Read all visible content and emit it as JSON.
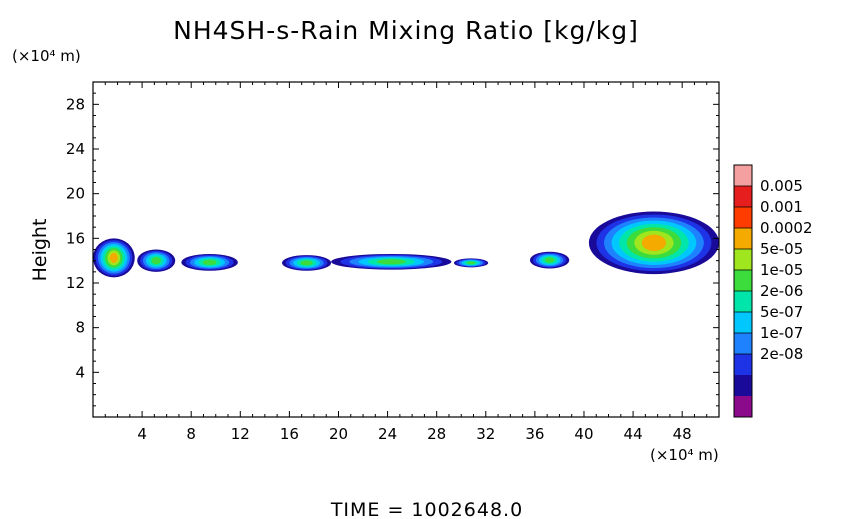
{
  "chart_data": {
    "type": "heatmap",
    "title": "NH4SH-s-Rain Mixing Ratio [kg/kg]",
    "ylabel": "Height",
    "xunit": "(×10⁴ m)",
    "yunit": "(×10⁴ m)",
    "xlim": [
      0,
      51
    ],
    "ylim": [
      0,
      30
    ],
    "x_ticks": [
      4,
      8,
      12,
      16,
      20,
      24,
      28,
      32,
      36,
      40,
      44,
      48
    ],
    "y_ticks": [
      4,
      8,
      12,
      16,
      20,
      24,
      28
    ],
    "colorbar": {
      "levels": [
        "0.005",
        "0.001",
        "0.0002",
        "5e-05",
        "1e-05",
        "2e-06",
        "5e-07",
        "1e-07",
        "2e-08"
      ],
      "colors": [
        "#8B0A8B",
        "#1A0A9A",
        "#1E32E6",
        "#1E82FF",
        "#00C8FF",
        "#00E6AA",
        "#3CDC3C",
        "#A0E61E",
        "#F5AA00",
        "#FF3C00",
        "#E61E1E",
        "#F5A0A0"
      ]
    },
    "bands": [
      {
        "x_start": 0.0,
        "x_end": 3.4,
        "y_bottom": 12.5,
        "y_top": 16.0
      },
      {
        "x_start": 3.6,
        "x_end": 6.7,
        "y_bottom": 13.0,
        "y_top": 15.0
      },
      {
        "x_start": 7.2,
        "x_end": 11.8,
        "y_bottom": 13.1,
        "y_top": 14.6
      },
      {
        "x_start": 15.4,
        "x_end": 19.4,
        "y_bottom": 13.1,
        "y_top": 14.5
      },
      {
        "x_start": 19.4,
        "x_end": 29.2,
        "y_bottom": 13.2,
        "y_top": 14.6
      },
      {
        "x_start": 29.4,
        "x_end": 32.2,
        "y_bottom": 13.4,
        "y_top": 14.2
      },
      {
        "x_start": 35.6,
        "x_end": 38.8,
        "y_bottom": 13.3,
        "y_top": 14.8
      },
      {
        "x_start": 40.4,
        "x_end": 51.0,
        "y_bottom": 12.8,
        "y_top": 18.4
      }
    ],
    "footer": "TIME  =  1002648.0"
  }
}
